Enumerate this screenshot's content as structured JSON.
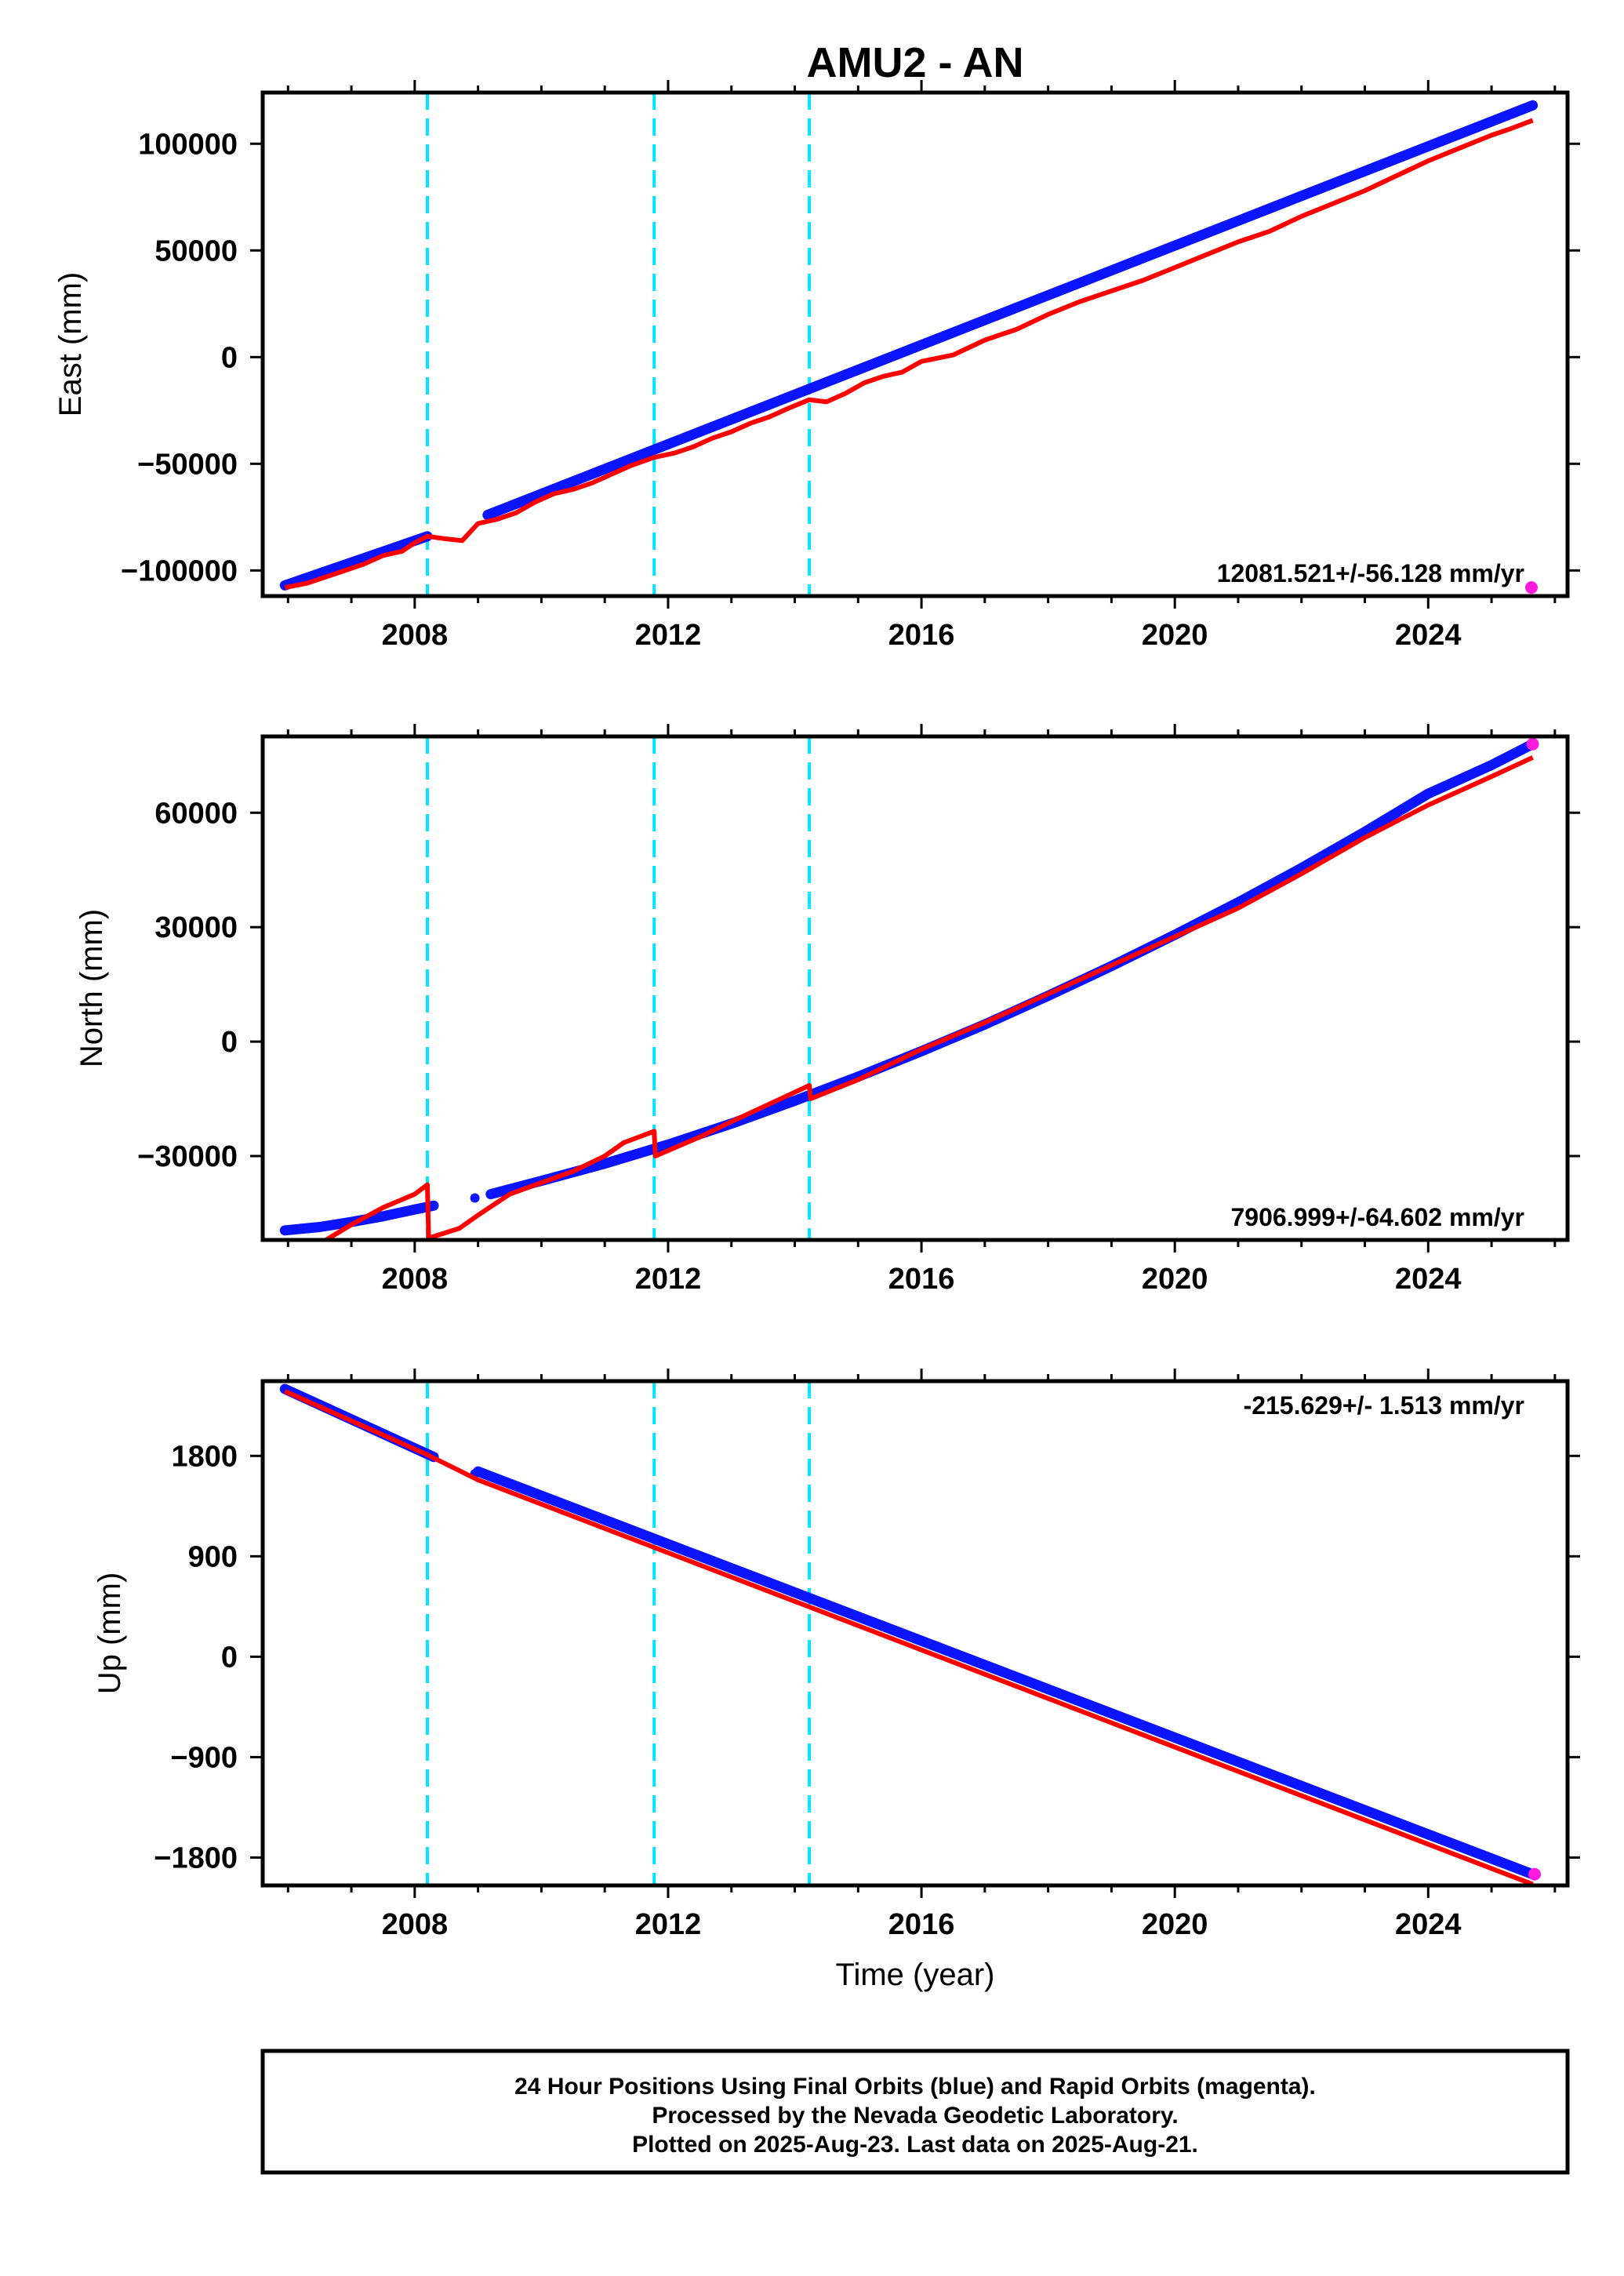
{
  "chart_data": {
    "title": "AMU2 - AN",
    "type": "scatter",
    "xlabel": "Time (year)",
    "xlim": [
      2005.6,
      2026.2
    ],
    "xticks": [
      2008,
      2012,
      2016,
      2020,
      2024
    ],
    "event_lines": [
      2008.2,
      2011.78,
      2014.23
    ],
    "colors": {
      "final": "#0a14ff",
      "rapid": "#ff1adc",
      "model": "#ff0000",
      "event": "#00e6ff"
    },
    "panels": [
      {
        "name": "east",
        "ylabel": "East (mm)",
        "ylim": [
          -112000,
          124000
        ],
        "yticks": [
          100000,
          50000,
          0,
          -50000,
          -100000
        ],
        "ytick_labels": [
          "100000",
          "50000",
          "0",
          "−50000",
          "−100000"
        ],
        "rate_text": "12081.521+/-56.128 mm/yr",
        "rate_position": "bottom-right",
        "final_segments": [
          {
            "x": [
              2005.95,
              2008.2
            ],
            "y": [
              -107000,
              -84000
            ]
          },
          {
            "x": [
              2009.15,
              2025.65
            ],
            "y": [
              -74000,
              118000
            ]
          }
        ],
        "rapid_points": [
          {
            "x": 2025.63,
            "y": -108000
          }
        ],
        "model": {
          "x": [
            2005.95,
            2006.3,
            2006.6,
            2006.9,
            2007.2,
            2007.5,
            2007.8,
            2008.0,
            2008.2,
            2008.45,
            2008.75,
            2009.0,
            2009.3,
            2009.6,
            2009.9,
            2010.2,
            2010.5,
            2010.8,
            2011.1,
            2011.4,
            2011.78,
            2012.1,
            2012.4,
            2012.7,
            2013.0,
            2013.3,
            2013.6,
            2013.9,
            2014.23,
            2014.5,
            2014.8,
            2015.1,
            2015.4,
            2015.7,
            2016.0,
            2016.5,
            2017.0,
            2017.5,
            2018.0,
            2018.5,
            2019.0,
            2019.5,
            2020.0,
            2020.5,
            2021.0,
            2021.5,
            2022.0,
            2022.5,
            2023.0,
            2023.5,
            2024.0,
            2024.5,
            2025.0,
            2025.3,
            2025.65
          ],
          "y": [
            -108000,
            -106000,
            -103000,
            -100000,
            -97000,
            -93000,
            -91000,
            -87000,
            -84000,
            -85000,
            -86000,
            -78000,
            -76000,
            -73000,
            -68000,
            -64000,
            -62000,
            -59000,
            -55000,
            -51000,
            -47000,
            -45000,
            -42000,
            -38000,
            -35000,
            -31000,
            -28000,
            -24000,
            -20000,
            -21000,
            -17000,
            -12000,
            -9000,
            -7000,
            -2000,
            1000,
            8000,
            13000,
            20000,
            26000,
            31000,
            36000,
            42000,
            48000,
            54000,
            59000,
            66000,
            72000,
            78000,
            85000,
            92000,
            98000,
            104000,
            107000,
            111000
          ]
        }
      },
      {
        "name": "north",
        "ylabel": "North (mm)",
        "ylim": [
          -52000,
          80000
        ],
        "yticks": [
          60000,
          30000,
          0,
          -30000
        ],
        "ytick_labels": [
          "60000",
          "30000",
          "0",
          "−30000"
        ],
        "rate_text": "7906.999+/-64.602 mm/yr",
        "rate_position": "bottom-right",
        "final_segments": [
          {
            "x": [
              2005.95,
              2006.5,
              2007.0,
              2007.5,
              2008.0,
              2008.3
            ],
            "y": [
              -49500,
              -48600,
              -47300,
              -45800,
              -44000,
              -43000
            ]
          },
          {
            "x": [
              2009.2,
              2010.0,
              2011.0,
              2012.0,
              2013.0,
              2014.0,
              2015.0,
              2016.0,
              2017.0,
              2018.0,
              2019.0,
              2020.0,
              2021.0,
              2022.0,
              2023.0,
              2024.0,
              2025.0,
              2025.65
            ],
            "y": [
              -40000,
              -36500,
              -32000,
              -27000,
              -21500,
              -15500,
              -9200,
              -2500,
              4500,
              12000,
              19800,
              28000,
              36500,
              45500,
              55000,
              65000,
              72500,
              78000
            ]
          }
        ],
        "isolated_points": [
          {
            "x": 2008.95,
            "y": -41000
          }
        ],
        "rapid_points": [
          {
            "x": 2025.65,
            "y": 78000
          }
        ],
        "model": {
          "x": [
            2006.6,
            2007.0,
            2007.5,
            2008.0,
            2008.2,
            2008.22,
            2008.7,
            2009.0,
            2009.5,
            2010.0,
            2010.5,
            2011.0,
            2011.3,
            2011.78,
            2011.8,
            2012.5,
            2013.0,
            2014.23,
            2014.25,
            2015.0,
            2016.0,
            2017.0,
            2018.0,
            2019.0,
            2020.0,
            2021.0,
            2022.0,
            2023.0,
            2024.0,
            2025.0,
            2025.65
          ],
          "y": [
            -52000,
            -48000,
            -43500,
            -40000,
            -37500,
            -51500,
            -49000,
            -45500,
            -40000,
            -37000,
            -34000,
            -30000,
            -26500,
            -23500,
            -30000,
            -25000,
            -21000,
            -11500,
            -15000,
            -10000,
            -2000,
            5000,
            12500,
            20000,
            27500,
            35000,
            44000,
            53500,
            62000,
            69500,
            74500
          ]
        }
      },
      {
        "name": "up",
        "ylabel": "Up (mm)",
        "ylim": [
          -2050,
          2470
        ],
        "yticks": [
          1800,
          900,
          0,
          -900,
          -1800
        ],
        "ytick_labels": [
          "1800",
          "900",
          "0",
          "−900",
          "−1800"
        ],
        "rate_text": "-215.629+/- 1.513 mm/yr",
        "rate_position": "top-right",
        "final_segments": [
          {
            "x": [
              2005.95,
              2008.3
            ],
            "y": [
              2400,
              1790
            ]
          },
          {
            "x": [
              2009.0,
              2025.65
            ],
            "y": [
              1660,
              -1950
            ]
          }
        ],
        "isolated_points": [
          {
            "x": 2008.95,
            "y": 1640
          }
        ],
        "rapid_points": [
          {
            "x": 2025.68,
            "y": -1950
          }
        ],
        "model": {
          "x": [
            2005.95,
            2008.2,
            2009.0,
            2025.65
          ],
          "y": [
            2380,
            1810,
            1585,
            -2040
          ]
        }
      }
    ]
  },
  "footer": {
    "line1": "24 Hour Positions Using Final Orbits (blue) and Rapid Orbits (magenta).",
    "line2": "Processed by the Nevada Geodetic Laboratory.",
    "line3": "Plotted on 2025-Aug-23. Last data on 2025-Aug-21."
  }
}
